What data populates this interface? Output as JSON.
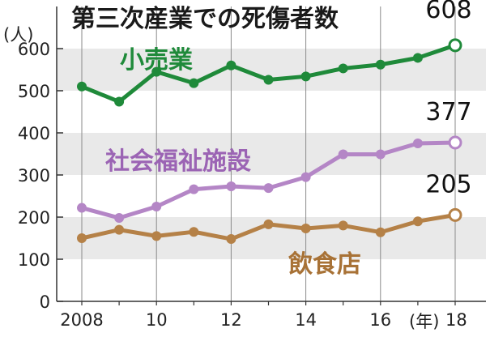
{
  "chart_data": {
    "type": "line",
    "title": "第三次産業での死傷者数",
    "y_unit": "(人)",
    "x_unit": "(年)",
    "x": [
      2008,
      2009,
      2010,
      2011,
      2012,
      2013,
      2014,
      2015,
      2016,
      2017,
      2018
    ],
    "x_tick_labels": [
      "2008",
      "10",
      "12",
      "14",
      "16",
      "18"
    ],
    "y_ticks": [
      0,
      100,
      200,
      300,
      400,
      500,
      600
    ],
    "ylim": [
      0,
      700
    ],
    "grid": "alternating horizontal bands",
    "series": [
      {
        "name": "小売業",
        "color": "#1f8a3a",
        "label_color": "#1f8a3a",
        "values": [
          510,
          474,
          545,
          518,
          560,
          526,
          534,
          553,
          562,
          578,
          608
        ],
        "end_value": "608"
      },
      {
        "name": "社会福祉施設",
        "color": "#b486c6",
        "label_color": "#9b64b4",
        "values": [
          222,
          198,
          225,
          266,
          273,
          269,
          295,
          349,
          349,
          375,
          377
        ],
        "end_value": "377"
      },
      {
        "name": "飲食店",
        "color": "#b58147",
        "label_color": "#a87236",
        "values": [
          150,
          170,
          155,
          165,
          148,
          183,
          173,
          180,
          164,
          190,
          205
        ],
        "end_value": "205"
      }
    ]
  }
}
